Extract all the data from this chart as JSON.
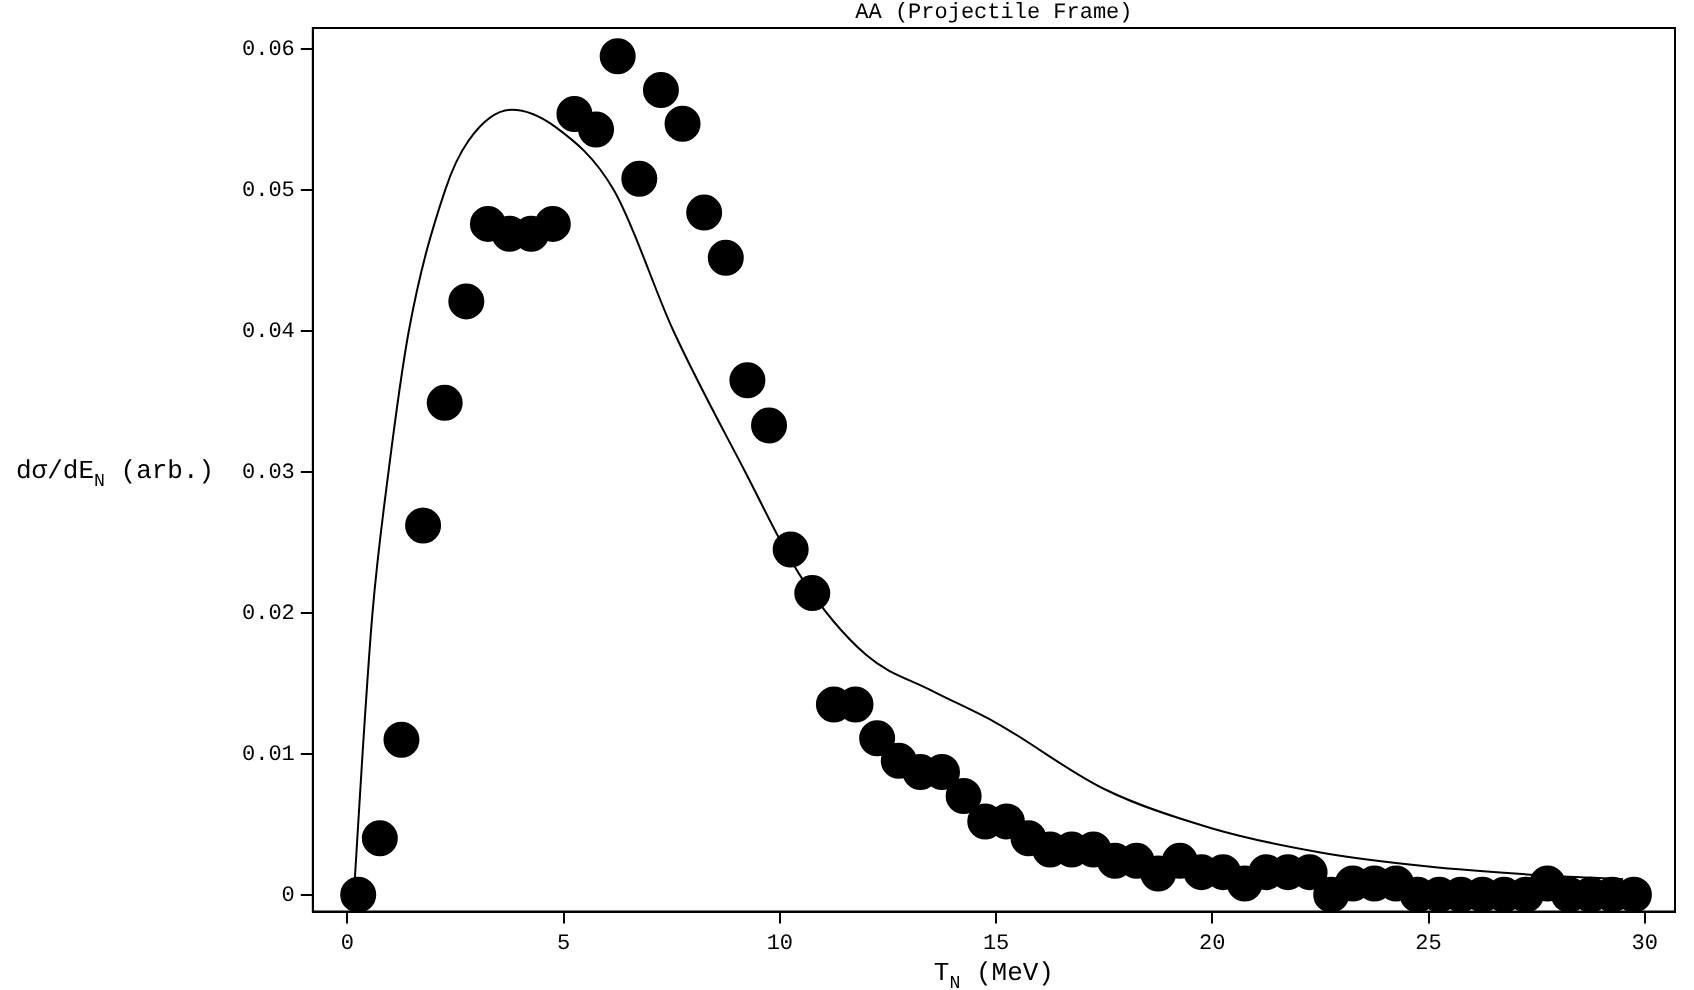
{
  "chart_data": {
    "type": "scatter",
    "title": "AA (Projectile Frame)",
    "xlabel": "T$_{N}$ (MeV)",
    "ylabel": "dσ/dE$_{N}$ (arb.)",
    "xlim": [
      -0.8,
      30.7
    ],
    "xticks": [
      0,
      5,
      10,
      15,
      20,
      25,
      30
    ],
    "ylim": [
      -0.0012,
      0.0615
    ],
    "yticks": [
      0,
      0.01,
      0.02,
      0.03,
      0.04,
      0.05,
      0.06
    ],
    "grid": false,
    "legend": false,
    "series": [
      {
        "color": "#000000",
        "marker": "circle",
        "x": [
          0.25,
          0.75,
          1.25,
          1.75,
          2.25,
          2.75,
          3.25,
          3.75,
          4.25,
          4.75,
          5.25,
          5.75,
          6.25,
          6.75,
          7.25,
          7.75,
          8.25,
          8.75,
          9.25,
          9.75,
          10.25,
          10.75,
          11.25,
          11.75,
          12.25,
          12.75,
          13.25,
          13.75,
          14.25,
          14.75,
          15.25,
          15.75,
          16.25,
          16.75,
          17.25,
          17.75,
          18.25,
          18.75,
          19.25,
          19.75,
          20.25,
          20.75,
          21.25,
          21.75,
          22.25,
          22.75,
          23.25,
          23.75,
          24.25,
          24.75,
          25.25,
          25.75,
          26.25,
          26.75,
          27.25,
          27.75,
          28.25,
          28.75,
          29.25,
          29.75
        ],
        "values": [
          0,
          0.004,
          0.011,
          0.0262,
          0.0349,
          0.0421,
          0.0476,
          0.0469,
          0.0469,
          0.0476,
          0.0554,
          0.0543,
          0.0595,
          0.0508,
          0.0571,
          0.0547,
          0.0484,
          0.0452,
          0.0365,
          0.0333,
          0.0245,
          0.0214,
          0.0135,
          0.0135,
          0.0111,
          0.0095,
          0.0087,
          0.0087,
          0.007,
          0.0052,
          0.0052,
          0.004,
          0.0032,
          0.0032,
          0.0032,
          0.0024,
          0.0024,
          0.0015,
          0.0024,
          0.0016,
          0.0016,
          0.0008,
          0.0016,
          0.0016,
          0.0016,
          0,
          0.0008,
          0.0008,
          0.0008,
          0,
          0,
          0,
          0,
          0,
          0,
          0.0008,
          0,
          0,
          0,
          0
        ]
      },
      {
        "type": "line",
        "color": "#000000",
        "marker": "none",
        "line_style": "solid",
        "x": [
          0.15,
          0.35,
          0.58,
          0.95,
          1.42,
          2.26,
          2.8,
          3.8,
          4.8,
          6.16,
          7.54,
          9.2,
          10.5,
          12,
          13.5,
          15,
          17.5,
          20,
          22.5,
          25,
          27.5,
          29.5
        ],
        "values": [
          0,
          0.01,
          0.02,
          0.03,
          0.04,
          0.05,
          0.0535,
          0.0557,
          0.0545,
          0.05,
          0.04,
          0.03,
          0.0225,
          0.017,
          0.0145,
          0.0122,
          0.0075,
          0.0047,
          0.003,
          0.002,
          0.0014,
          0.0011
        ]
      }
    ]
  }
}
